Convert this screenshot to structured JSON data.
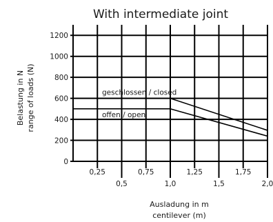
{
  "chart_data": {
    "type": "line",
    "title": "With intermediate joint",
    "ylabel": [
      "Belastung in N",
      "range of loads (N)"
    ],
    "xlabel": [
      "Ausladung in m",
      "centilever (m)"
    ],
    "xlim": [
      0,
      2.0
    ],
    "ylim": [
      0,
      1300
    ],
    "grid": true,
    "x_ticks": [
      {
        "value": 0.25,
        "label": "0,25"
      },
      {
        "value": 0.5,
        "label": "0,5"
      },
      {
        "value": 0.75,
        "label": "0,75"
      },
      {
        "value": 1.0,
        "label": "1,0"
      },
      {
        "value": 1.25,
        "label": "1,25"
      },
      {
        "value": 1.5,
        "label": "1,5"
      },
      {
        "value": 1.75,
        "label": "1,75"
      },
      {
        "value": 2.0,
        "label": "2,0"
      }
    ],
    "y_ticks": [
      {
        "value": 0,
        "label": "0"
      },
      {
        "value": 200,
        "label": "200"
      },
      {
        "value": 400,
        "label": "400"
      },
      {
        "value": 600,
        "label": "600"
      },
      {
        "value": 800,
        "label": "800"
      },
      {
        "value": 1000,
        "label": "1000"
      },
      {
        "value": 1200,
        "label": "1200"
      }
    ],
    "series": [
      {
        "name": "geschlossen / closed",
        "x": [
          0,
          1.0,
          2.0
        ],
        "y": [
          600,
          600,
          295
        ]
      },
      {
        "name": "offen / open",
        "x": [
          0,
          1.0,
          2.0
        ],
        "y": [
          500,
          500,
          240
        ]
      }
    ]
  }
}
